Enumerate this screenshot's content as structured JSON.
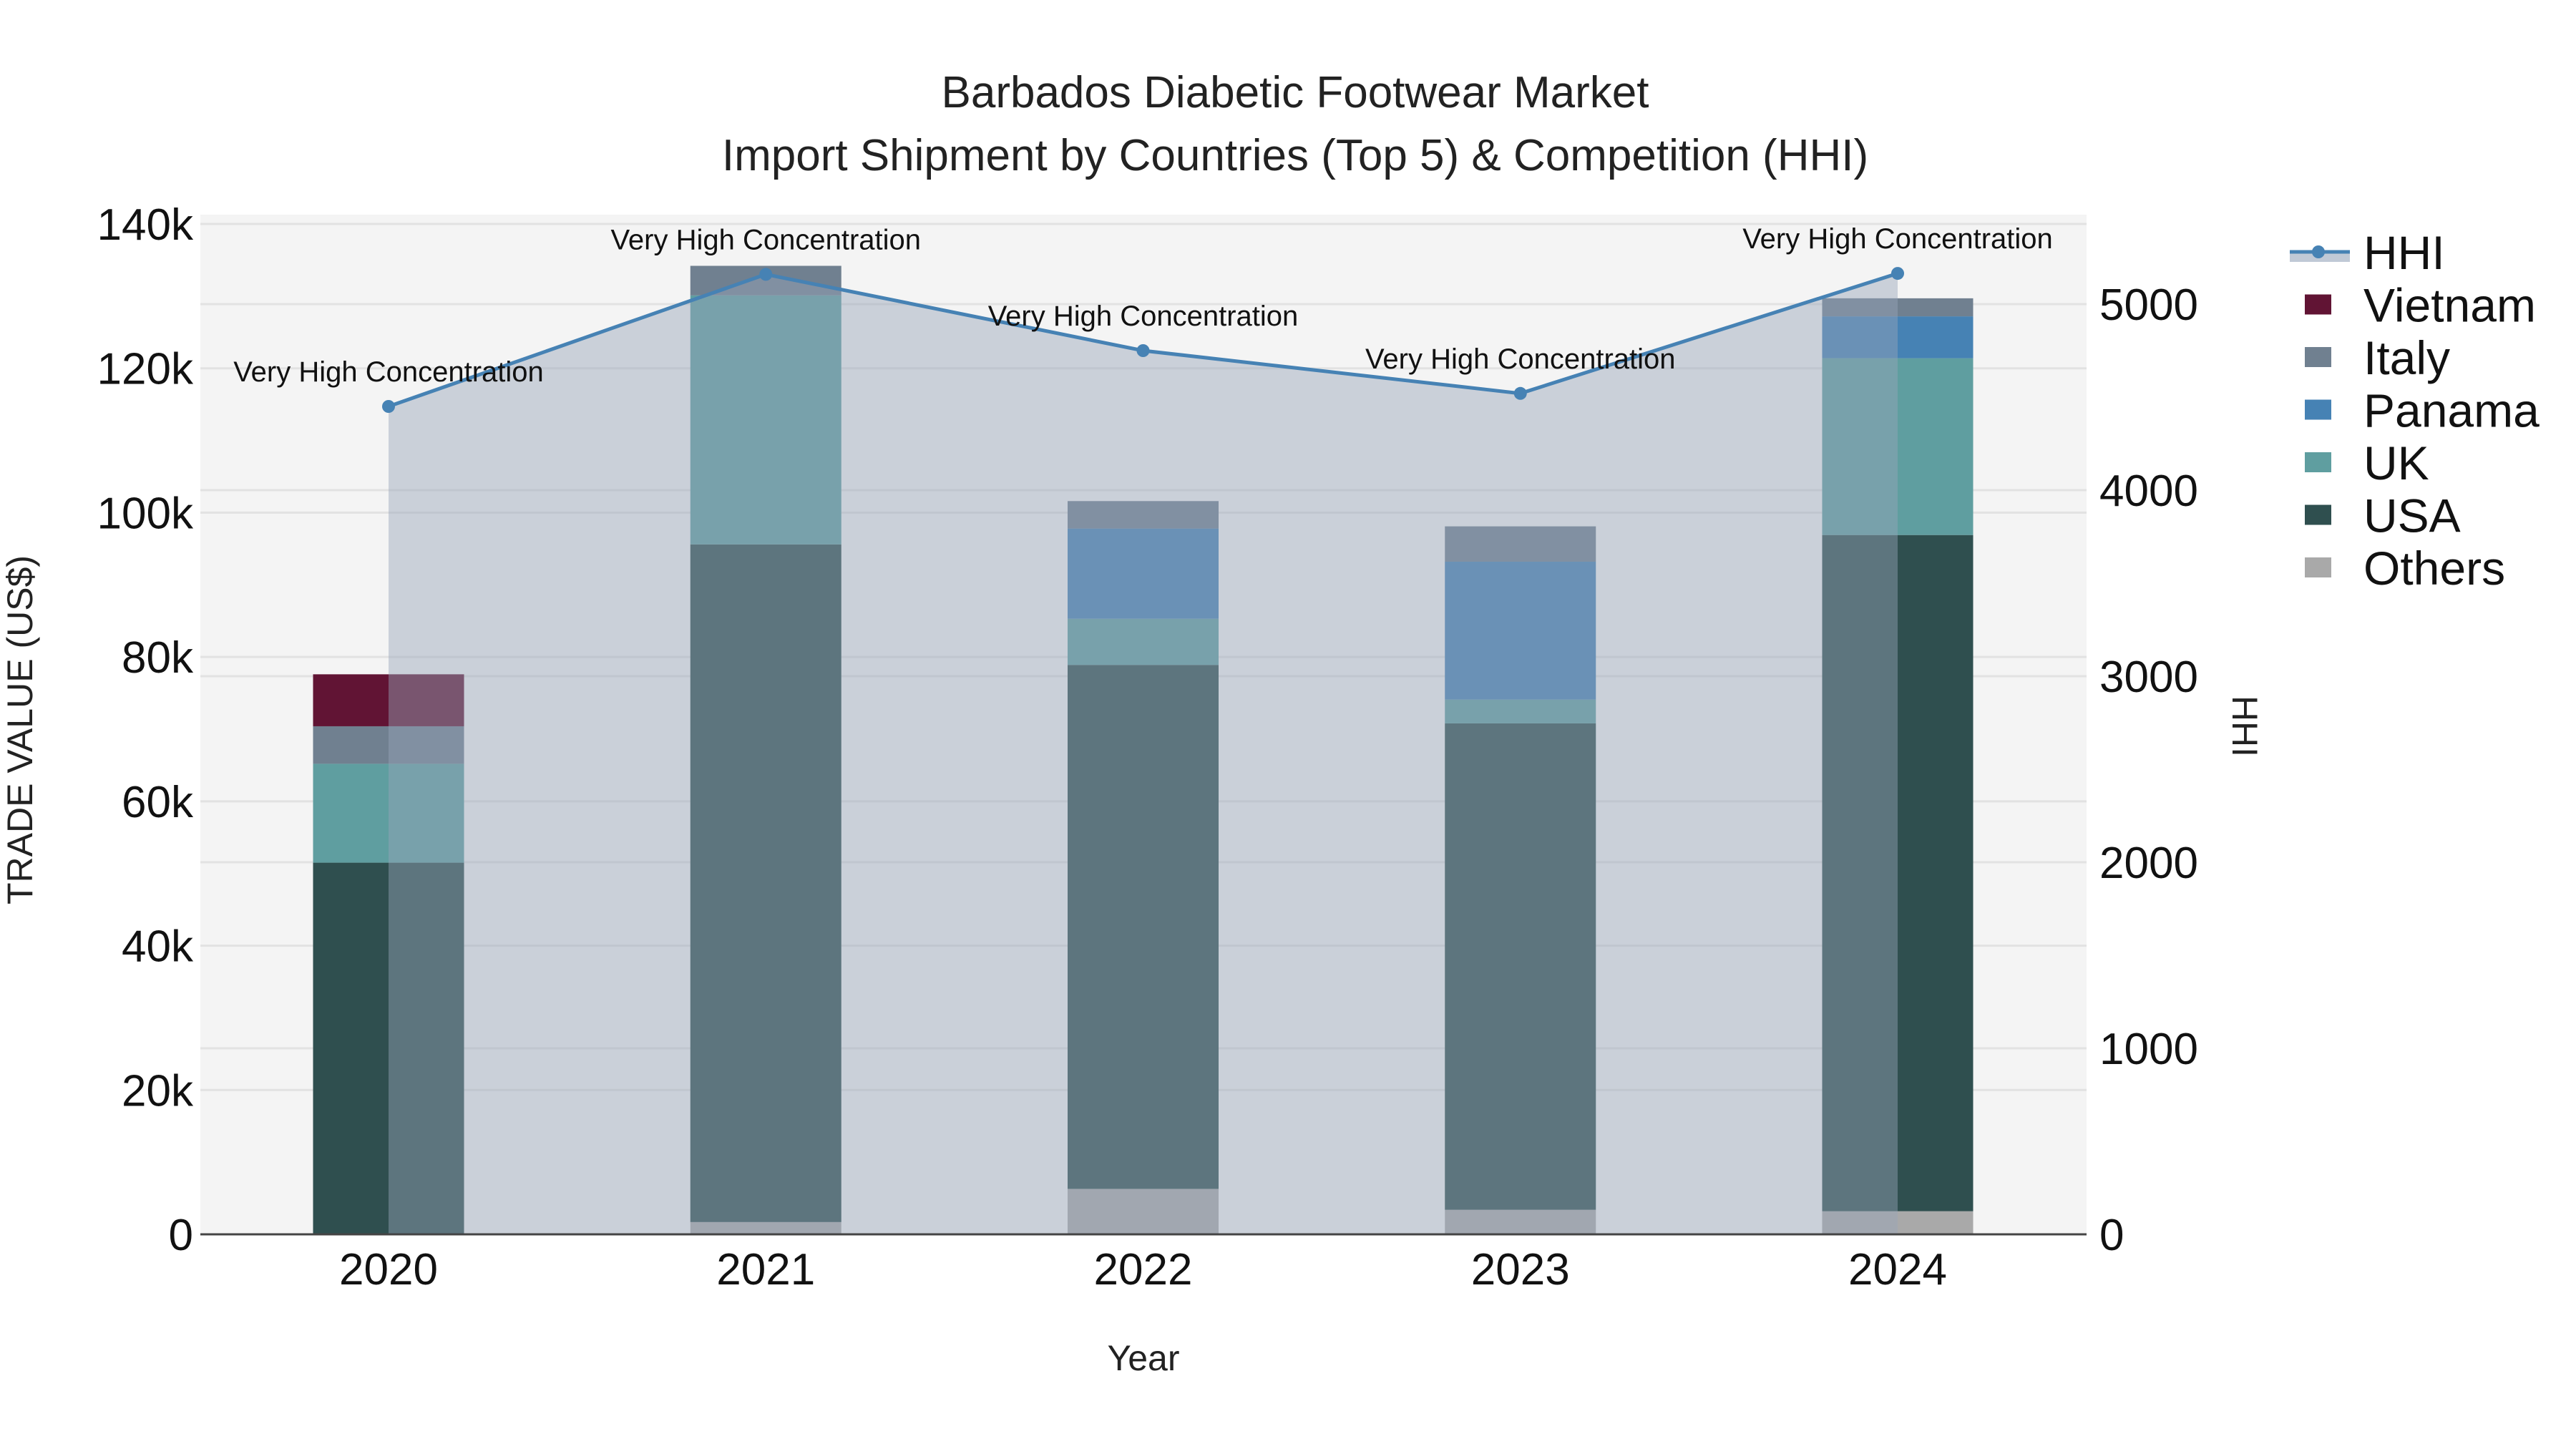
{
  "title": {
    "line1": "Barbados Diabetic Footwear Market",
    "line2": "Import Shipment by Countries (Top 5) & Competition (HHI)"
  },
  "axes": {
    "x_title": "Year",
    "y_left_title": "TRADE VALUE (US$)",
    "y_right_title": "HHI",
    "y_left_ticks": [
      "0",
      "20k",
      "40k",
      "60k",
      "80k",
      "100k",
      "120k",
      "140k"
    ],
    "y_right_ticks": [
      "0",
      "1000",
      "2000",
      "3000",
      "4000",
      "5000"
    ]
  },
  "legend": {
    "items": [
      {
        "label": "HHI",
        "type": "line",
        "color": "#4682b4"
      },
      {
        "label": "Vietnam",
        "type": "bar",
        "color": "#611434"
      },
      {
        "label": "Italy",
        "type": "bar",
        "color": "#708090"
      },
      {
        "label": "Panama",
        "type": "bar",
        "color": "#4682b4"
      },
      {
        "label": "UK",
        "type": "bar",
        "color": "#5f9ea0"
      },
      {
        "label": "USA",
        "type": "bar",
        "color": "#2f4f4f"
      },
      {
        "label": "Others",
        "type": "bar",
        "color": "#a9a9a9"
      }
    ]
  },
  "colors": {
    "plot_bg": "#f4f4f4",
    "grid": "#e2e2e2",
    "hhi_line": "#4682b4",
    "hhi_fill": "rgba(176,188,204,0.6)"
  },
  "chart_data": {
    "type": "bar",
    "title": "Barbados Diabetic Footwear Market — Import Shipment by Countries (Top 5) & Competition (HHI)",
    "xlabel": "Year",
    "ylabel": "TRADE VALUE (US$)",
    "y2label": "HHI",
    "categories": [
      "2020",
      "2021",
      "2022",
      "2023",
      "2024"
    ],
    "stacked": true,
    "ylim": [
      0,
      140000
    ],
    "y2lim": [
      0,
      5500
    ],
    "grid": true,
    "legend_position": "right",
    "series": [
      {
        "name": "Others",
        "color": "#a9a9a9",
        "values": [
          0,
          1700,
          6300,
          3400,
          3200
        ]
      },
      {
        "name": "USA",
        "color": "#2f4f4f",
        "values": [
          51500,
          93900,
          72600,
          67400,
          93700
        ]
      },
      {
        "name": "UK",
        "color": "#5f9ea0",
        "values": [
          13700,
          34500,
          6400,
          3300,
          24500
        ]
      },
      {
        "name": "Panama",
        "color": "#4682b4",
        "values": [
          0,
          0,
          12500,
          19100,
          5800
        ]
      },
      {
        "name": "Italy",
        "color": "#708090",
        "values": [
          5200,
          4100,
          3800,
          4900,
          2500
        ]
      },
      {
        "name": "Vietnam",
        "color": "#611434",
        "values": [
          7200,
          0,
          0,
          0,
          0
        ]
      }
    ],
    "hhi": {
      "name": "HHI",
      "axis": "right",
      "type": "line+area",
      "values": [
        4450,
        5160,
        4750,
        4520,
        5165
      ],
      "annotations": [
        "Very High Concentration",
        "Very High Concentration",
        "Very High Concentration",
        "Very High Concentration",
        "Very High Concentration"
      ]
    }
  }
}
